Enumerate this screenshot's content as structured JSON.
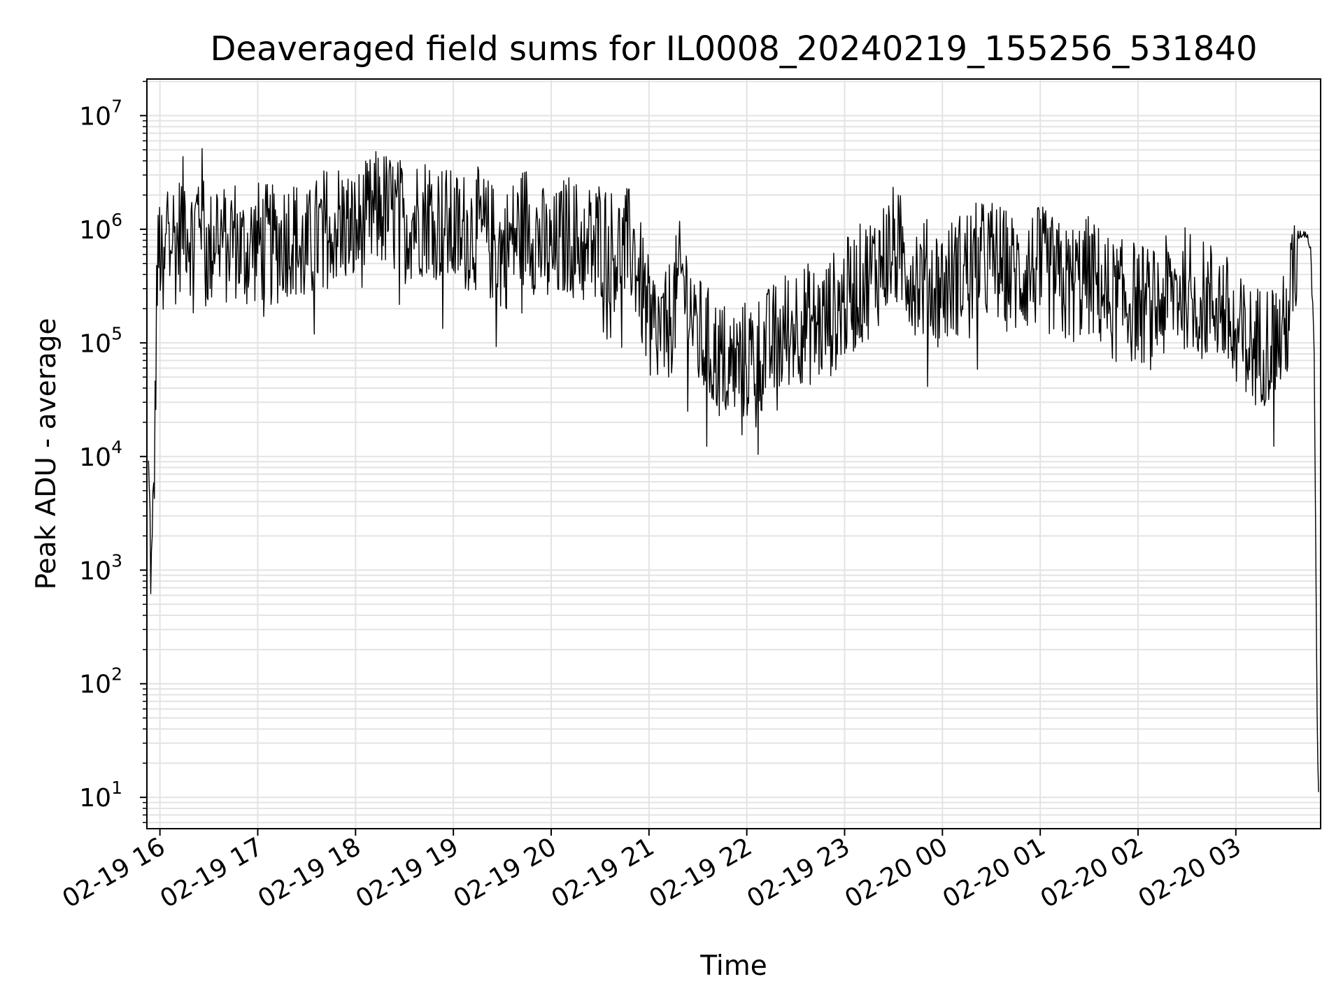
{
  "chart_data": {
    "type": "line",
    "title": "Deaveraged field sums for IL0008_20240219_155256_531840",
    "xlabel": "Time",
    "ylabel": "Peak ADU - average",
    "y_scale": "log",
    "ylim": [
      5.3,
      21000000
    ],
    "xlim": [
      "02-19 15:52",
      "02-20 03:52"
    ],
    "grid": true,
    "line_color": "#000000",
    "grid_color": "#e3e3e3",
    "x_ticks": [
      {
        "label": "02-19 16",
        "t": "02-19 16:00"
      },
      {
        "label": "02-19 17",
        "t": "02-19 17:00"
      },
      {
        "label": "02-19 18",
        "t": "02-19 18:00"
      },
      {
        "label": "02-19 19",
        "t": "02-19 19:00"
      },
      {
        "label": "02-19 20",
        "t": "02-19 20:00"
      },
      {
        "label": "02-19 21",
        "t": "02-19 21:00"
      },
      {
        "label": "02-19 22",
        "t": "02-19 22:00"
      },
      {
        "label": "02-19 23",
        "t": "02-19 23:00"
      },
      {
        "label": "02-20 00",
        "t": "02-20 00:00"
      },
      {
        "label": "02-20 01",
        "t": "02-20 01:00"
      },
      {
        "label": "02-20 02",
        "t": "02-20 02:00"
      },
      {
        "label": "02-20 03",
        "t": "02-20 03:00"
      }
    ],
    "y_ticks": [
      {
        "base": "10",
        "exp": "1",
        "value": 10
      },
      {
        "base": "10",
        "exp": "2",
        "value": 100
      },
      {
        "base": "10",
        "exp": "3",
        "value": 1000
      },
      {
        "base": "10",
        "exp": "4",
        "value": 10000
      },
      {
        "base": "10",
        "exp": "5",
        "value": 100000
      },
      {
        "base": "10",
        "exp": "6",
        "value": 1000000
      },
      {
        "base": "10",
        "exp": "7",
        "value": 10000000
      }
    ],
    "series": [
      {
        "x": [
          "02-19 15:53",
          "02-19 15:55",
          "02-19 15:56",
          "02-19 15:57",
          "02-19 15:58",
          "02-19 16:00",
          "02-19 16:02",
          "02-19 16:05",
          "02-19 16:10",
          "02-19 16:15",
          "02-19 16:20",
          "02-19 16:25",
          "02-19 16:30",
          "02-19 16:35",
          "02-19 16:40",
          "02-19 16:45",
          "02-19 16:50",
          "02-19 17:00",
          "02-19 17:10",
          "02-19 17:20",
          "02-19 17:30",
          "02-19 17:40",
          "02-19 17:50",
          "02-19 18:00",
          "02-19 18:15",
          "02-19 18:30",
          "02-19 18:45",
          "02-19 19:00",
          "02-19 19:15",
          "02-19 19:30",
          "02-19 19:45",
          "02-19 20:00",
          "02-19 20:10",
          "02-19 20:20",
          "02-19 20:30",
          "02-19 20:40",
          "02-19 20:50",
          "02-19 21:00",
          "02-19 21:10",
          "02-19 21:20",
          "02-19 21:30",
          "02-19 21:40",
          "02-19 21:50",
          "02-19 22:00",
          "02-19 22:15",
          "02-19 22:30",
          "02-19 22:45",
          "02-19 23:00",
          "02-19 23:15",
          "02-19 23:30",
          "02-19 23:45",
          "02-20 00:00",
          "02-20 00:15",
          "02-20 00:30",
          "02-20 00:45",
          "02-20 01:00",
          "02-20 01:15",
          "02-20 01:30",
          "02-20 01:45",
          "02-20 02:00",
          "02-20 02:10",
          "02-20 02:20",
          "02-20 02:30",
          "02-20 02:40",
          "02-20 02:50",
          "02-20 03:00",
          "02-20 03:10",
          "02-20 03:20",
          "02-20 03:30",
          "02-20 03:38",
          "02-20 03:43",
          "02-20 03:46",
          "02-20 03:48",
          "02-20 03:50",
          "02-20 03:51"
        ],
        "y": [
          8000,
          900,
          5000,
          20000,
          400000,
          1000000,
          300000,
          2000000,
          900000,
          1800000,
          1000000,
          2500000,
          700000,
          1500000,
          900000,
          1200000,
          800000,
          1000000,
          900000,
          1200000,
          800000,
          1300000,
          1500000,
          1200000,
          2000000,
          1500000,
          1800000,
          1200000,
          1300000,
          800000,
          1500000,
          700000,
          1200000,
          900000,
          1100000,
          800000,
          900000,
          200000,
          150000,
          500000,
          150000,
          100000,
          80000,
          90000,
          120000,
          200000,
          180000,
          300000,
          500000,
          900000,
          500000,
          400000,
          600000,
          700000,
          500000,
          600000,
          400000,
          500000,
          300000,
          300000,
          250000,
          350000,
          400000,
          300000,
          300000,
          150000,
          120000,
          130000,
          150000,
          900000,
          950000,
          700000,
          100000,
          30,
          8
        ]
      }
    ]
  }
}
